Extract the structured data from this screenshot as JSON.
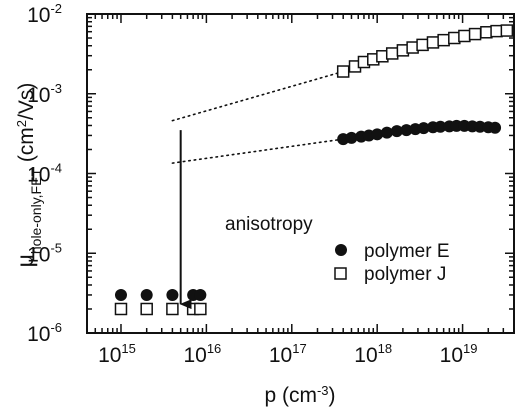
{
  "chart_data": {
    "type": "scatter",
    "title": "",
    "xlabel_base": "p (cm",
    "xlabel_sup": "-3",
    "xlabel_end": ")",
    "ylabel_mu": "μ",
    "ylabel_sub": "hole-only,FET",
    "ylabel_unit_start": " (cm",
    "ylabel_unit_sup": "2",
    "ylabel_unit_end": "/Vs)",
    "x_scale": "log",
    "y_scale": "log",
    "xlim": [
      400000000000000.0,
      4e+19
    ],
    "ylim": [
      1e-06,
      0.01
    ],
    "x_ticks": [
      {
        "value": 1000000000000000.0,
        "base": "10",
        "exp": "15"
      },
      {
        "value": 1e+16,
        "base": "10",
        "exp": "16"
      },
      {
        "value": 1e+17,
        "base": "10",
        "exp": "17"
      },
      {
        "value": 1e+18,
        "base": "10",
        "exp": "18"
      },
      {
        "value": 1e+19,
        "base": "10",
        "exp": "19"
      }
    ],
    "y_ticks": [
      {
        "value": 1e-06,
        "base": "10",
        "exp": "-6"
      },
      {
        "value": 1e-05,
        "base": "10",
        "exp": "-5"
      },
      {
        "value": 0.0001,
        "base": "10",
        "exp": "-4"
      },
      {
        "value": 0.001,
        "base": "10",
        "exp": "-3"
      },
      {
        "value": 0.01,
        "base": "10",
        "exp": "-2"
      }
    ],
    "series": [
      {
        "name": "polymer E",
        "marker": "filled-circle",
        "color": "#111111",
        "points": [
          [
            1000000000000000.0,
            3e-06
          ],
          [
            2000000000000000.0,
            3e-06
          ],
          [
            4000000000000000.0,
            3e-06
          ],
          [
            7000000000000000.0,
            3e-06
          ],
          [
            8500000000000000.0,
            3e-06
          ],
          [
            4e+17,
            0.00027
          ],
          [
            5e+17,
            0.00028
          ],
          [
            6.5e+17,
            0.00029
          ],
          [
            8e+17,
            0.0003
          ],
          [
            1e+18,
            0.00031
          ],
          [
            1.3e+18,
            0.000325
          ],
          [
            1.7e+18,
            0.00034
          ],
          [
            2.2e+18,
            0.00035
          ],
          [
            2.8e+18,
            0.00036
          ],
          [
            3.5e+18,
            0.00037
          ],
          [
            4.5e+18,
            0.00038
          ],
          [
            5.5e+18,
            0.000385
          ],
          [
            7e+18,
            0.00039
          ],
          [
            8.5e+18,
            0.000395
          ],
          [
            1.05e+19,
            0.000395
          ],
          [
            1.3e+19,
            0.00039
          ],
          [
            1.6e+19,
            0.000385
          ],
          [
            2e+19,
            0.00038
          ],
          [
            2.4e+19,
            0.000375
          ]
        ],
        "fit_line": [
          [
            4000000000000000.0,
            0.000135
          ],
          [
            4e+17,
            0.00027
          ]
        ]
      },
      {
        "name": "polymer J",
        "marker": "open-square",
        "color": "#111111",
        "points": [
          [
            1000000000000000.0,
            2e-06
          ],
          [
            2000000000000000.0,
            2e-06
          ],
          [
            4000000000000000.0,
            2e-06
          ],
          [
            7000000000000000.0,
            2e-06
          ],
          [
            8500000000000000.0,
            2e-06
          ],
          [
            4e+17,
            0.0019
          ],
          [
            5.5e+17,
            0.0022
          ],
          [
            7e+17,
            0.0025
          ],
          [
            9e+17,
            0.0027
          ],
          [
            1.15e+18,
            0.00295
          ],
          [
            1.5e+18,
            0.0032
          ],
          [
            2e+18,
            0.0035
          ],
          [
            2.6e+18,
            0.0038
          ],
          [
            3.4e+18,
            0.0041
          ],
          [
            4.5e+18,
            0.0044
          ],
          [
            6e+18,
            0.0047
          ],
          [
            8e+18,
            0.005
          ],
          [
            1.05e+19,
            0.0053
          ],
          [
            1.4e+19,
            0.0056
          ],
          [
            1.9e+19,
            0.0059
          ],
          [
            2.5e+19,
            0.0061
          ],
          [
            3.3e+19,
            0.0062
          ]
        ],
        "fit_line": [
          [
            4000000000000000.0,
            0.00046
          ],
          [
            4e+17,
            0.0019
          ]
        ]
      }
    ],
    "annotation": {
      "text": "anisotropy",
      "arrow_x": 5000000000000000.0,
      "arrow_from_y": 0.00035,
      "arrow_to_y": 2.3e-06
    },
    "legend": {
      "placement": "right",
      "items": [
        {
          "label": "polymer E",
          "marker": "filled-circle"
        },
        {
          "label": "polymer J",
          "marker": "open-square"
        }
      ]
    },
    "grid": false
  }
}
